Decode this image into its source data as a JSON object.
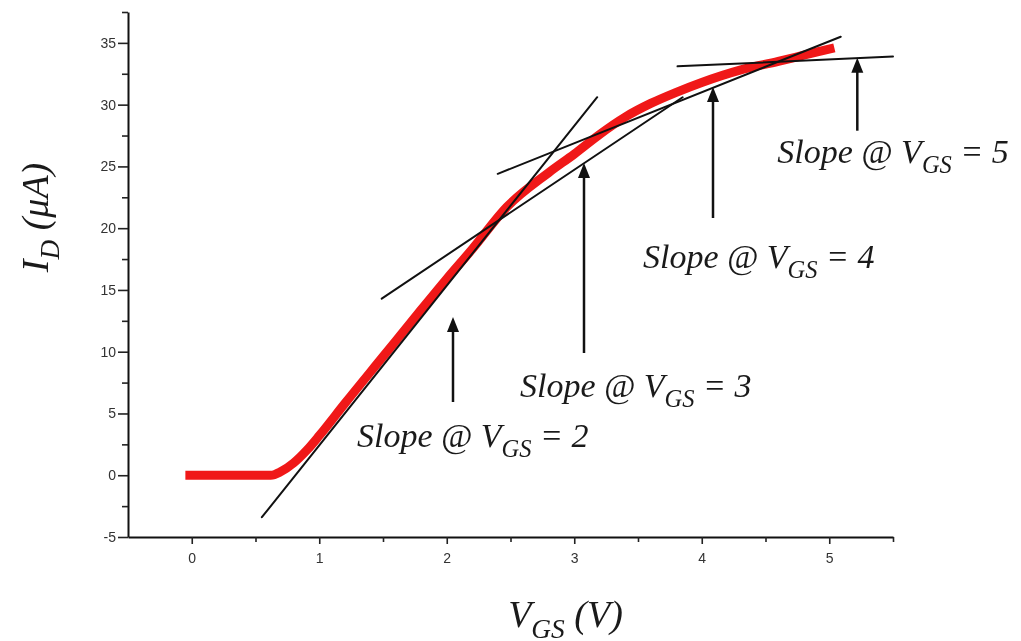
{
  "chart_data": {
    "type": "line",
    "xlabel": "V$_{GS}$ (V)",
    "ylabel": "I$_{D}$ (μA)",
    "xlim": [
      -0.5,
      5.5
    ],
    "ylim": [
      -5,
      37.5
    ],
    "xticks": [
      0,
      {
        "value": 0.5,
        "label": null
      },
      1,
      {
        "value": 1.5,
        "label": null
      },
      2,
      {
        "value": 2.5,
        "label": null
      },
      3,
      {
        "value": 3.5,
        "label": null
      },
      4,
      {
        "value": 4.5,
        "label": null
      },
      5,
      {
        "value": 5.5,
        "label": null
      }
    ],
    "yticks": [
      -5,
      {
        "value": -2.5,
        "label": null
      },
      0,
      {
        "value": 2.5,
        "label": null
      },
      5,
      {
        "value": 7.5,
        "label": null
      },
      10,
      {
        "value": 12.5,
        "label": null
      },
      15,
      {
        "value": 17.5,
        "label": null
      },
      20,
      {
        "value": 22.5,
        "label": null
      },
      25,
      {
        "value": 27.5,
        "label": null
      },
      30,
      {
        "value": 32.5,
        "label": null
      },
      35,
      {
        "value": 37.5,
        "label": null
      }
    ],
    "series": [
      {
        "color": "#f01818",
        "x": [
          -0.05,
          0.3,
          0.62,
          0.7,
          0.8,
          0.9,
          1.0,
          1.2,
          1.5,
          1.8,
          2.0,
          2.2,
          2.47,
          2.8,
          3.0,
          3.2,
          3.4,
          3.6,
          3.8,
          4.0,
          4.3,
          4.6,
          4.8,
          5.04
        ],
        "values": [
          0,
          0,
          0,
          0.3,
          1.0,
          2.0,
          3.2,
          5.8,
          9.6,
          13.4,
          15.9,
          18.3,
          21.7,
          24.5,
          26.0,
          27.6,
          29.0,
          30.1,
          31.0,
          31.8,
          32.8,
          33.5,
          34.0,
          34.6
        ]
      },
      {
        "type": "line",
        "color": "#111111",
        "x": [
          0.55,
          3.18
        ],
        "values": [
          -3.4,
          30.6
        ]
      },
      {
        "type": "line",
        "color": "#111111",
        "x": [
          1.49,
          3.85
        ],
        "values": [
          14.3,
          30.6
        ]
      },
      {
        "type": "line",
        "color": "#111111",
        "x": [
          2.4,
          5.09
        ],
        "values": [
          24.4,
          35.5
        ]
      },
      {
        "type": "line",
        "color": "#111111",
        "x": [
          3.81,
          5.5
        ],
        "values": [
          33.1,
          33.9
        ]
      }
    ],
    "annotations": [
      "Slope @ V$_{GS}$ = 2",
      "Slope @ V$_{GS}$ = 3",
      "Slope @ V$_{GS}$ = 4",
      {
        "text": "Slope @ V$_{GS}$ = 5",
        "x": 5.22,
        "y": 33.8
      }
    ]
  }
}
